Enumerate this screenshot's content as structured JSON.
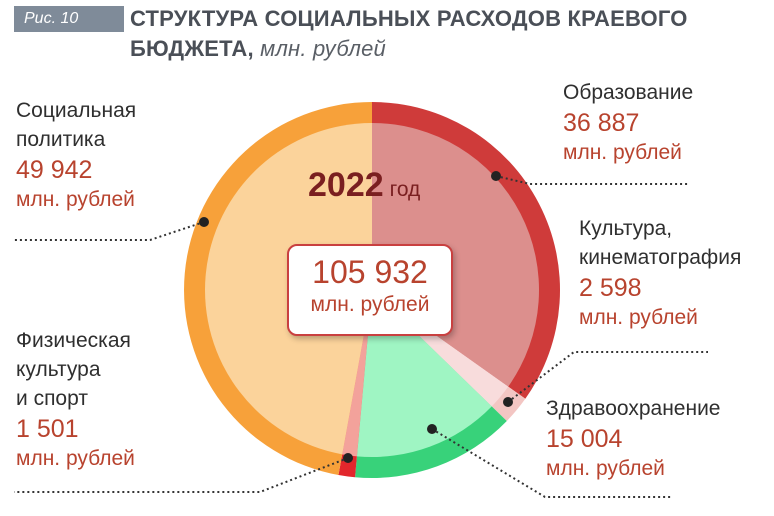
{
  "figure": {
    "badge": "Рис. 10",
    "title_line1": "СТРУКТУРА СОЦИАЛЬНЫХ РАСХОДОВ КРАЕВОГО",
    "title_line2": "БЮДЖЕТА,",
    "title_unit": "млн. рублей"
  },
  "center": {
    "year": "2022",
    "year_word": "год",
    "total": "105 932",
    "total_unit": "млн. рублей"
  },
  "labels": {
    "obrazovanie": {
      "name1": "Образование",
      "value": "36 887",
      "unit": "млн. рублей"
    },
    "kultura": {
      "name1": "Культура,",
      "name2": "кинематография",
      "value": "2 598",
      "unit": "млн. рублей"
    },
    "zdravoohranenie": {
      "name1": "Здравоохранение",
      "value": "15 004",
      "unit": "млн. рублей"
    },
    "fizkultura": {
      "name1": "Физическая",
      "name2": "культура",
      "name3": "и спорт",
      "value": "1 501",
      "unit": "млн. рублей"
    },
    "socpolitika": {
      "name1": "Социальная",
      "name2": "политика",
      "value": "49 942",
      "unit": "млн. рублей"
    }
  },
  "chart_data": {
    "type": "pie",
    "title": "СТРУКТУРА СОЦИАЛЬНЫХ РАСХОДОВ КРАЕВОГО БЮДЖЕТА, млн. рублей",
    "total": 105932,
    "categories": [
      "Образование",
      "Культура, кинематография",
      "Здравоохранение",
      "Физическая культура и спорт",
      "Социальная политика"
    ],
    "values": [
      36887,
      2598,
      15004,
      1501,
      49942
    ],
    "colors": {
      "outer": [
        "#cf3b3a",
        "#f3c6c3",
        "#38d27a",
        "#e2272c",
        "#f7a13a"
      ],
      "inner": [
        "#dc8f8d",
        "#f8dcdc",
        "#9ff5c3",
        "#f3a29b",
        "#fbd39b"
      ]
    }
  }
}
